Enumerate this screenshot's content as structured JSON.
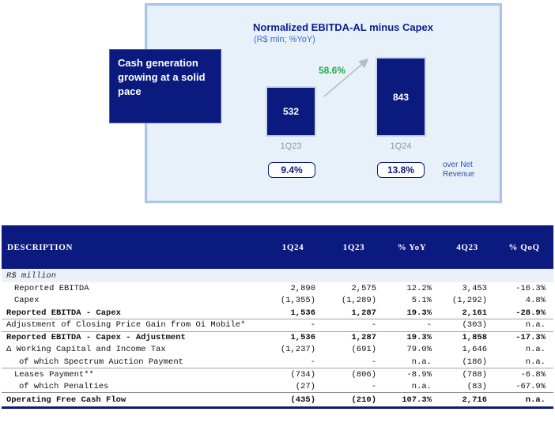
{
  "chart_data": {
    "type": "bar",
    "title": "Normalized EBITDA-AL minus Capex",
    "subtitle": "(R$ mln; %YoY)",
    "categories": [
      "1Q23",
      "1Q24"
    ],
    "values": [
      532,
      843
    ],
    "value_labels": [
      "532",
      "843"
    ],
    "growth_label": "58.6%",
    "margin_labels": [
      "9.4%",
      "13.8%"
    ],
    "margin_note": "over Net Revenue",
    "callout": "Cash generation growing at a solid pace",
    "colors": {
      "bar": "#0b1a7e",
      "growth": "#1fae4b",
      "accent": "#2f6fd6"
    }
  },
  "table": {
    "headers": [
      "DESCRIPTION",
      "1Q24",
      "1Q23",
      "% YoY",
      "4Q23",
      "% QoQ"
    ],
    "unit_label": "R$ million",
    "rows": [
      {
        "label": "Reported EBITDA",
        "v": [
          "2,890",
          "2,575",
          "12.2%",
          "3,453",
          "-16.3%"
        ],
        "style": "i1"
      },
      {
        "label": "Capex",
        "v": [
          "(1,355)",
          "(1,289)",
          "5.1%",
          "(1,292)",
          "4.8%"
        ],
        "style": "i1"
      },
      {
        "label": "Reported EBITDA - Capex",
        "v": [
          "1,536",
          "1,287",
          "19.3%",
          "2,161",
          "-28.9%"
        ],
        "style": "i0 bold"
      },
      {
        "label": "Adjustment of Closing Price Gain from Oi Mobile*",
        "v": [
          "-",
          "-",
          "-",
          "(303)",
          "n.a."
        ],
        "style": "i0 sep-top"
      },
      {
        "label": "Reported EBITDA - Capex - Adjustment",
        "v": [
          "1,536",
          "1,287",
          "19.3%",
          "1,858",
          "-17.3%"
        ],
        "style": "i0 bold sep-top"
      },
      {
        "label": "Δ Working Capital and Income Tax",
        "v": [
          "(1,237)",
          "(691)",
          "79.0%",
          "1,646",
          "n.a."
        ],
        "style": "i0"
      },
      {
        "label": "of which Spectrum Auction Payment",
        "v": [
          "-",
          "-",
          "n.a.",
          "(186)",
          "n.a."
        ],
        "style": "i2"
      },
      {
        "label": "Leases Payment**",
        "v": [
          "(734)",
          "(806)",
          "-8.9%",
          "(788)",
          "-6.8%"
        ],
        "style": "i1 sep-top"
      },
      {
        "label": "of which Penalties",
        "v": [
          "(27)",
          "-",
          "n.a.",
          "(83)",
          "-67.9%"
        ],
        "style": "i2"
      },
      {
        "label": "Operating Free Cash Flow",
        "v": [
          "(435)",
          "(210)",
          "107.3%",
          "2,716",
          "n.a."
        ],
        "style": "i0 last"
      }
    ]
  }
}
